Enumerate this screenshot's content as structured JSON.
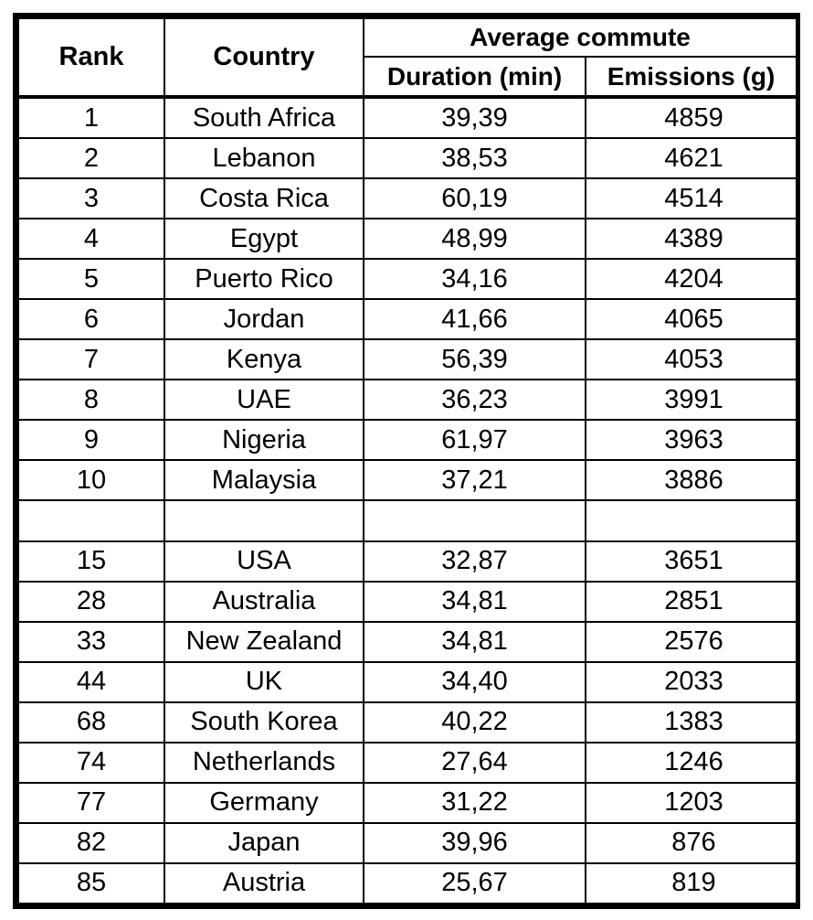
{
  "table": {
    "headers": {
      "rank": "Rank",
      "country": "Country",
      "group": "Average commute",
      "duration": "Duration (min)",
      "emissions": "Emissions (g)"
    },
    "rows": [
      {
        "rank": "1",
        "country": "South Africa",
        "duration": "39,39",
        "emissions": "4859"
      },
      {
        "rank": "2",
        "country": "Lebanon",
        "duration": "38,53",
        "emissions": "4621"
      },
      {
        "rank": "3",
        "country": "Costa Rica",
        "duration": "60,19",
        "emissions": "4514"
      },
      {
        "rank": "4",
        "country": "Egypt",
        "duration": "48,99",
        "emissions": "4389"
      },
      {
        "rank": "5",
        "country": "Puerto Rico",
        "duration": "34,16",
        "emissions": "4204"
      },
      {
        "rank": "6",
        "country": "Jordan",
        "duration": "41,66",
        "emissions": "4065"
      },
      {
        "rank": "7",
        "country": "Kenya",
        "duration": "56,39",
        "emissions": "4053"
      },
      {
        "rank": "8",
        "country": "UAE",
        "duration": "36,23",
        "emissions": "3991"
      },
      {
        "rank": "9",
        "country": "Nigeria",
        "duration": "61,97",
        "emissions": "3963"
      },
      {
        "rank": "10",
        "country": "Malaysia",
        "duration": "37,21",
        "emissions": "3886"
      },
      {
        "rank": "",
        "country": "",
        "duration": "",
        "emissions": ""
      },
      {
        "rank": "15",
        "country": "USA",
        "duration": "32,87",
        "emissions": "3651"
      },
      {
        "rank": "28",
        "country": "Australia",
        "duration": "34,81",
        "emissions": "2851"
      },
      {
        "rank": "33",
        "country": "New Zealand",
        "duration": "34,81",
        "emissions": "2576"
      },
      {
        "rank": "44",
        "country": "UK",
        "duration": "34,40",
        "emissions": "2033"
      },
      {
        "rank": "68",
        "country": "South Korea",
        "duration": "40,22",
        "emissions": "1383"
      },
      {
        "rank": "74",
        "country": "Netherlands",
        "duration": "27,64",
        "emissions": "1246"
      },
      {
        "rank": "77",
        "country": "Germany",
        "duration": "31,22",
        "emissions": "1203"
      },
      {
        "rank": "82",
        "country": "Japan",
        "duration": "39,96",
        "emissions": "876"
      },
      {
        "rank": "85",
        "country": "Austria",
        "duration": "25,67",
        "emissions": "819"
      }
    ]
  }
}
